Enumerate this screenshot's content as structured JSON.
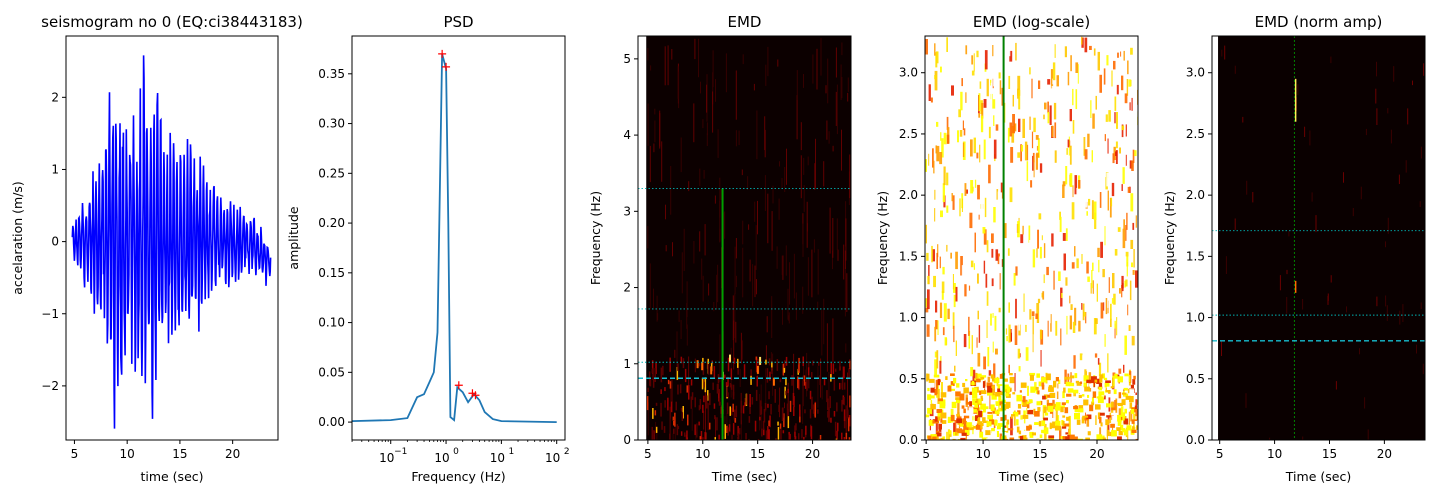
{
  "chart_data": [
    {
      "type": "line",
      "title": "seismogram no 0 (EQ:ci38443183)",
      "xlabel": "time (sec)",
      "ylabel": "accelaration (m/s)",
      "xlim": [
        4.2,
        24.3
      ],
      "ylim": [
        -2.75,
        2.85
      ],
      "xticks": [
        5,
        10,
        15,
        20
      ],
      "yticks": [
        -2,
        -1,
        0,
        1,
        2
      ],
      "line_color": "#0000ff",
      "envelope": [
        {
          "t": 4.8,
          "a": 0.25
        },
        {
          "t": 5.5,
          "a": 0.6
        },
        {
          "t": 6.5,
          "a": 0.75
        },
        {
          "t": 8.0,
          "a": 1.6
        },
        {
          "t": 8.7,
          "a": 2.5
        },
        {
          "t": 9.8,
          "a": 2.2
        },
        {
          "t": 10.8,
          "a": 1.9
        },
        {
          "t": 11.8,
          "a": 2.6
        },
        {
          "t": 13.0,
          "a": 2.3
        },
        {
          "t": 14.0,
          "a": 1.5
        },
        {
          "t": 15.5,
          "a": 1.6
        },
        {
          "t": 17.5,
          "a": 1.0
        },
        {
          "t": 19.0,
          "a": 0.7
        },
        {
          "t": 21.0,
          "a": 0.55
        },
        {
          "t": 23.5,
          "a": 0.35
        }
      ]
    },
    {
      "type": "line",
      "title": "PSD",
      "xlabel": "Frequency (Hz)",
      "ylabel": "amplitude",
      "xscale": "log",
      "xlim_log10": [
        -1.7,
        2.15
      ],
      "ylim": [
        -0.018,
        0.388
      ],
      "xtick_labels": [
        "10",
        "10",
        "10",
        "10"
      ],
      "xtick_exponents": [
        "−1",
        "0",
        "1",
        "2"
      ],
      "xtick_log10": [
        -1,
        0,
        1,
        2
      ],
      "yticks": [
        0.0,
        0.05,
        0.1,
        0.15,
        0.2,
        0.25,
        0.3,
        0.35
      ],
      "ytick_labels": [
        "0.00",
        "0.05",
        "0.10",
        "0.15",
        "0.20",
        "0.25",
        "0.30",
        "0.35"
      ],
      "line_color": "#1f77b4",
      "marker_color": "#ff0000",
      "points": [
        {
          "f": 0.02,
          "v": 0.001
        },
        {
          "f": 0.1,
          "v": 0.002
        },
        {
          "f": 0.2,
          "v": 0.004
        },
        {
          "f": 0.3,
          "v": 0.025
        },
        {
          "f": 0.4,
          "v": 0.028
        },
        {
          "f": 0.5,
          "v": 0.04
        },
        {
          "f": 0.6,
          "v": 0.05
        },
        {
          "f": 0.7,
          "v": 0.09
        },
        {
          "f": 0.85,
          "v": 0.37
        },
        {
          "f": 1.0,
          "v": 0.355
        },
        {
          "f": 1.1,
          "v": 0.2
        },
        {
          "f": 1.2,
          "v": 0.005
        },
        {
          "f": 1.4,
          "v": 0.002
        },
        {
          "f": 1.6,
          "v": 0.035
        },
        {
          "f": 2.0,
          "v": 0.03
        },
        {
          "f": 2.5,
          "v": 0.02
        },
        {
          "f": 3.2,
          "v": 0.028
        },
        {
          "f": 4.0,
          "v": 0.022
        },
        {
          "f": 5.0,
          "v": 0.01
        },
        {
          "f": 7.0,
          "v": 0.003
        },
        {
          "f": 10.0,
          "v": 0.001
        },
        {
          "f": 100.0,
          "v": 0.0
        }
      ],
      "peaks": [
        {
          "f": 0.85,
          "v": 0.37
        },
        {
          "f": 1.0,
          "v": 0.357
        },
        {
          "f": 1.7,
          "v": 0.037
        },
        {
          "f": 3.0,
          "v": 0.029
        },
        {
          "f": 3.4,
          "v": 0.027
        }
      ]
    },
    {
      "type": "heatmap",
      "title": "EMD",
      "xlabel": "Time (sec)",
      "ylabel": "Frequency (Hz)",
      "xlim": [
        4.1,
        23.5
      ],
      "ylim": [
        0,
        5.3
      ],
      "xticks": [
        5,
        10,
        15,
        20
      ],
      "yticks": [
        0,
        1,
        2,
        3,
        4,
        5
      ],
      "background": "#0c0000",
      "vline": {
        "x": 11.8,
        "color": "#00a000"
      },
      "hlines": [
        {
          "y": 3.3,
          "color": "#00b3b3",
          "style": "dotted"
        },
        {
          "y": 1.72,
          "color": "#00b3b3",
          "style": "dotted"
        },
        {
          "y": 1.02,
          "color": "#00b3b3",
          "style": "dotted"
        },
        {
          "y": 0.81,
          "color": "#17becf",
          "style": "dashed"
        }
      ]
    },
    {
      "type": "heatmap",
      "title": "EMD (log-scale)",
      "xlabel": "Time (sec)",
      "ylabel": "Frequency (Hz)",
      "xlim": [
        4.9,
        23.6
      ],
      "ylim": [
        0,
        3.3
      ],
      "xticks": [
        5,
        10,
        15,
        20
      ],
      "yticks": [
        0.0,
        0.5,
        1.0,
        1.5,
        2.0,
        2.5,
        3.0
      ],
      "ytick_labels": [
        "0.0",
        "0.5",
        "1.0",
        "1.5",
        "2.0",
        "2.5",
        "3.0"
      ],
      "background": "#ffffff",
      "vline": {
        "x": 11.8,
        "color": "#008000"
      }
    },
    {
      "type": "heatmap",
      "title": "EMD (norm amp)",
      "xlabel": "Time (sec)",
      "ylabel": "Frequency (Hz)",
      "xlim": [
        4.3,
        23.7
      ],
      "ylim": [
        0,
        3.3
      ],
      "xticks": [
        5,
        10,
        15,
        20
      ],
      "yticks": [
        0.0,
        0.5,
        1.0,
        1.5,
        2.0,
        2.5,
        3.0
      ],
      "ytick_labels": [
        "0.0",
        "0.5",
        "1.0",
        "1.5",
        "2.0",
        "2.5",
        "3.0"
      ],
      "background": "#0a0000",
      "vline": {
        "x": 11.8,
        "color": "#00a000"
      },
      "hlines": [
        {
          "y": 1.71,
          "color": "#00b3b3",
          "style": "dotted"
        },
        {
          "y": 1.02,
          "color": "#00b3b3",
          "style": "dotted"
        },
        {
          "y": 0.81,
          "color": "#17becf",
          "style": "dashed"
        }
      ]
    }
  ]
}
